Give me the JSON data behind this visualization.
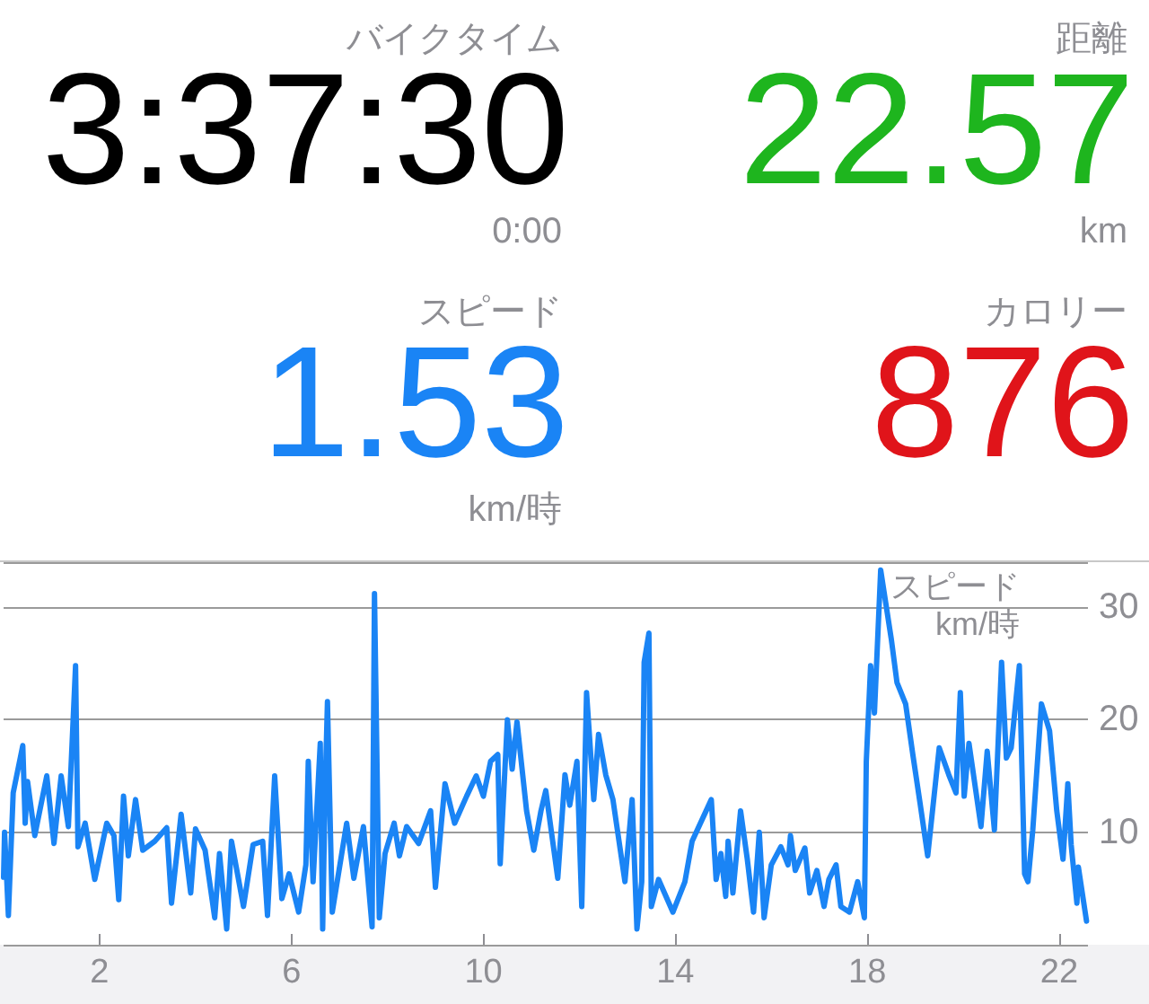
{
  "chart_data": {
    "type": "line",
    "ylabel": "スピード\nkm/時",
    "annotations": [
      "バイクタイム",
      "3:37:30",
      "0:00",
      "距離",
      "22.57",
      "km",
      "スピード",
      "1.53",
      "km/時",
      "カロリー",
      "876"
    ],
    "series": [
      {
        "color": "#1a84f5",
        "x": [
          0.0,
          0.02,
          0.1,
          0.2,
          0.4,
          0.45,
          0.5,
          0.65,
          0.9,
          1.05,
          1.2,
          1.35,
          1.5,
          1.55,
          1.7,
          1.9,
          2.15,
          2.3,
          2.4,
          2.5,
          2.6,
          2.75,
          2.9,
          3.15,
          3.4,
          3.5,
          3.7,
          3.9,
          4.0,
          4.2,
          4.4,
          4.5,
          4.65,
          4.75,
          5.0,
          5.2,
          5.4,
          5.5,
          5.65,
          5.8,
          5.95,
          6.15,
          6.3,
          6.35,
          6.45,
          6.6,
          6.65,
          6.7,
          6.75,
          6.85,
          7.15,
          7.3,
          7.5,
          7.68,
          7.73,
          7.83,
          7.95,
          8.14,
          8.25,
          8.4,
          8.65,
          8.9,
          9.0,
          9.2,
          9.4,
          9.65,
          9.85,
          10.0,
          10.15,
          10.3,
          10.35,
          10.5,
          10.6,
          10.7,
          10.9,
          11.05,
          11.2,
          11.3,
          11.55,
          11.7,
          11.8,
          11.95,
          12.05,
          12.15,
          12.3,
          12.4,
          12.55,
          12.7,
          12.95,
          13.1,
          13.2,
          13.3,
          13.35,
          13.45,
          13.5,
          13.65,
          13.95,
          14.2,
          14.35,
          14.75,
          14.85,
          14.95,
          15.05,
          15.1,
          15.2,
          15.36,
          15.5,
          15.63,
          15.75,
          15.85,
          16.0,
          16.2,
          16.35,
          16.4,
          16.5,
          16.7,
          16.8,
          16.95,
          17.1,
          17.2,
          17.35,
          17.45,
          17.63,
          17.8,
          17.94,
          17.98,
          18.07,
          18.15,
          18.28,
          18.5,
          18.62,
          18.8,
          18.95,
          19.1,
          19.26,
          19.5,
          19.7,
          19.85,
          19.94,
          20.02,
          20.12,
          20.37,
          20.5,
          20.65,
          20.8,
          20.9,
          21.0,
          21.17,
          21.28,
          21.35,
          21.45,
          21.63,
          21.8,
          21.95,
          22.08,
          22.18,
          22.25,
          22.37,
          22.4,
          22.57
        ],
        "values": [
          6,
          10,
          2.6,
          13.5,
          17.7,
          10.8,
          14.5,
          9.7,
          15,
          9,
          15,
          10.5,
          24.8,
          8.7,
          10.8,
          5.8,
          10.8,
          9.7,
          4,
          13.2,
          7.9,
          12.9,
          8.4,
          9.2,
          10.4,
          3.7,
          11.6,
          4.6,
          10.3,
          8.4,
          2.4,
          8.1,
          1.4,
          9.2,
          3.4,
          8.9,
          9.2,
          2.6,
          15,
          4.1,
          6.3,
          2.9,
          7.1,
          16.3,
          5.6,
          17.9,
          1.4,
          13.5,
          21.6,
          2.9,
          10.8,
          5.9,
          10.5,
          1.6,
          31.2,
          2.4,
          8.1,
          10.8,
          7.9,
          10.5,
          9,
          11.9,
          5.1,
          14.3,
          10.8,
          13.2,
          15,
          13.2,
          16.3,
          16.9,
          7.2,
          20,
          15.6,
          19.8,
          11.9,
          8.4,
          11.9,
          13.7,
          5.9,
          15.1,
          12.4,
          16.3,
          3.4,
          22.4,
          12.9,
          18.7,
          15.1,
          12.9,
          5.6,
          12.9,
          1.4,
          5.6,
          25.1,
          27.7,
          3.4,
          5.8,
          2.9,
          5.6,
          9.2,
          12.9,
          5.8,
          8.1,
          4.3,
          9.2,
          4.6,
          11.9,
          7.6,
          2.9,
          10,
          2.4,
          7.1,
          8.7,
          7.1,
          9.7,
          6.6,
          8.6,
          4.6,
          6.6,
          3.4,
          5.8,
          7.1,
          3.4,
          2.9,
          5.6,
          2.4,
          16.3,
          24.8,
          20.6,
          33.3,
          27.2,
          23.3,
          21.4,
          16.9,
          12.6,
          7.9,
          17.5,
          15.1,
          13.5,
          22.4,
          13.2,
          17.9,
          10.5,
          17.2,
          10.2,
          25.1,
          16.6,
          17.5,
          24.8,
          6.3,
          5.6,
          10.2,
          21.4,
          19,
          11.9,
          7.6,
          14.3,
          8.9,
          3.7,
          6.9,
          2.1
        ]
      }
    ],
    "xlim": [
      0,
      22.6
    ],
    "xticks": [
      2,
      6,
      10,
      14,
      18,
      22
    ],
    "ylim": [
      0,
      34
    ],
    "yticks": [
      10,
      20,
      30
    ],
    "grid": "y",
    "marker": "none",
    "line_style": "solid"
  }
}
